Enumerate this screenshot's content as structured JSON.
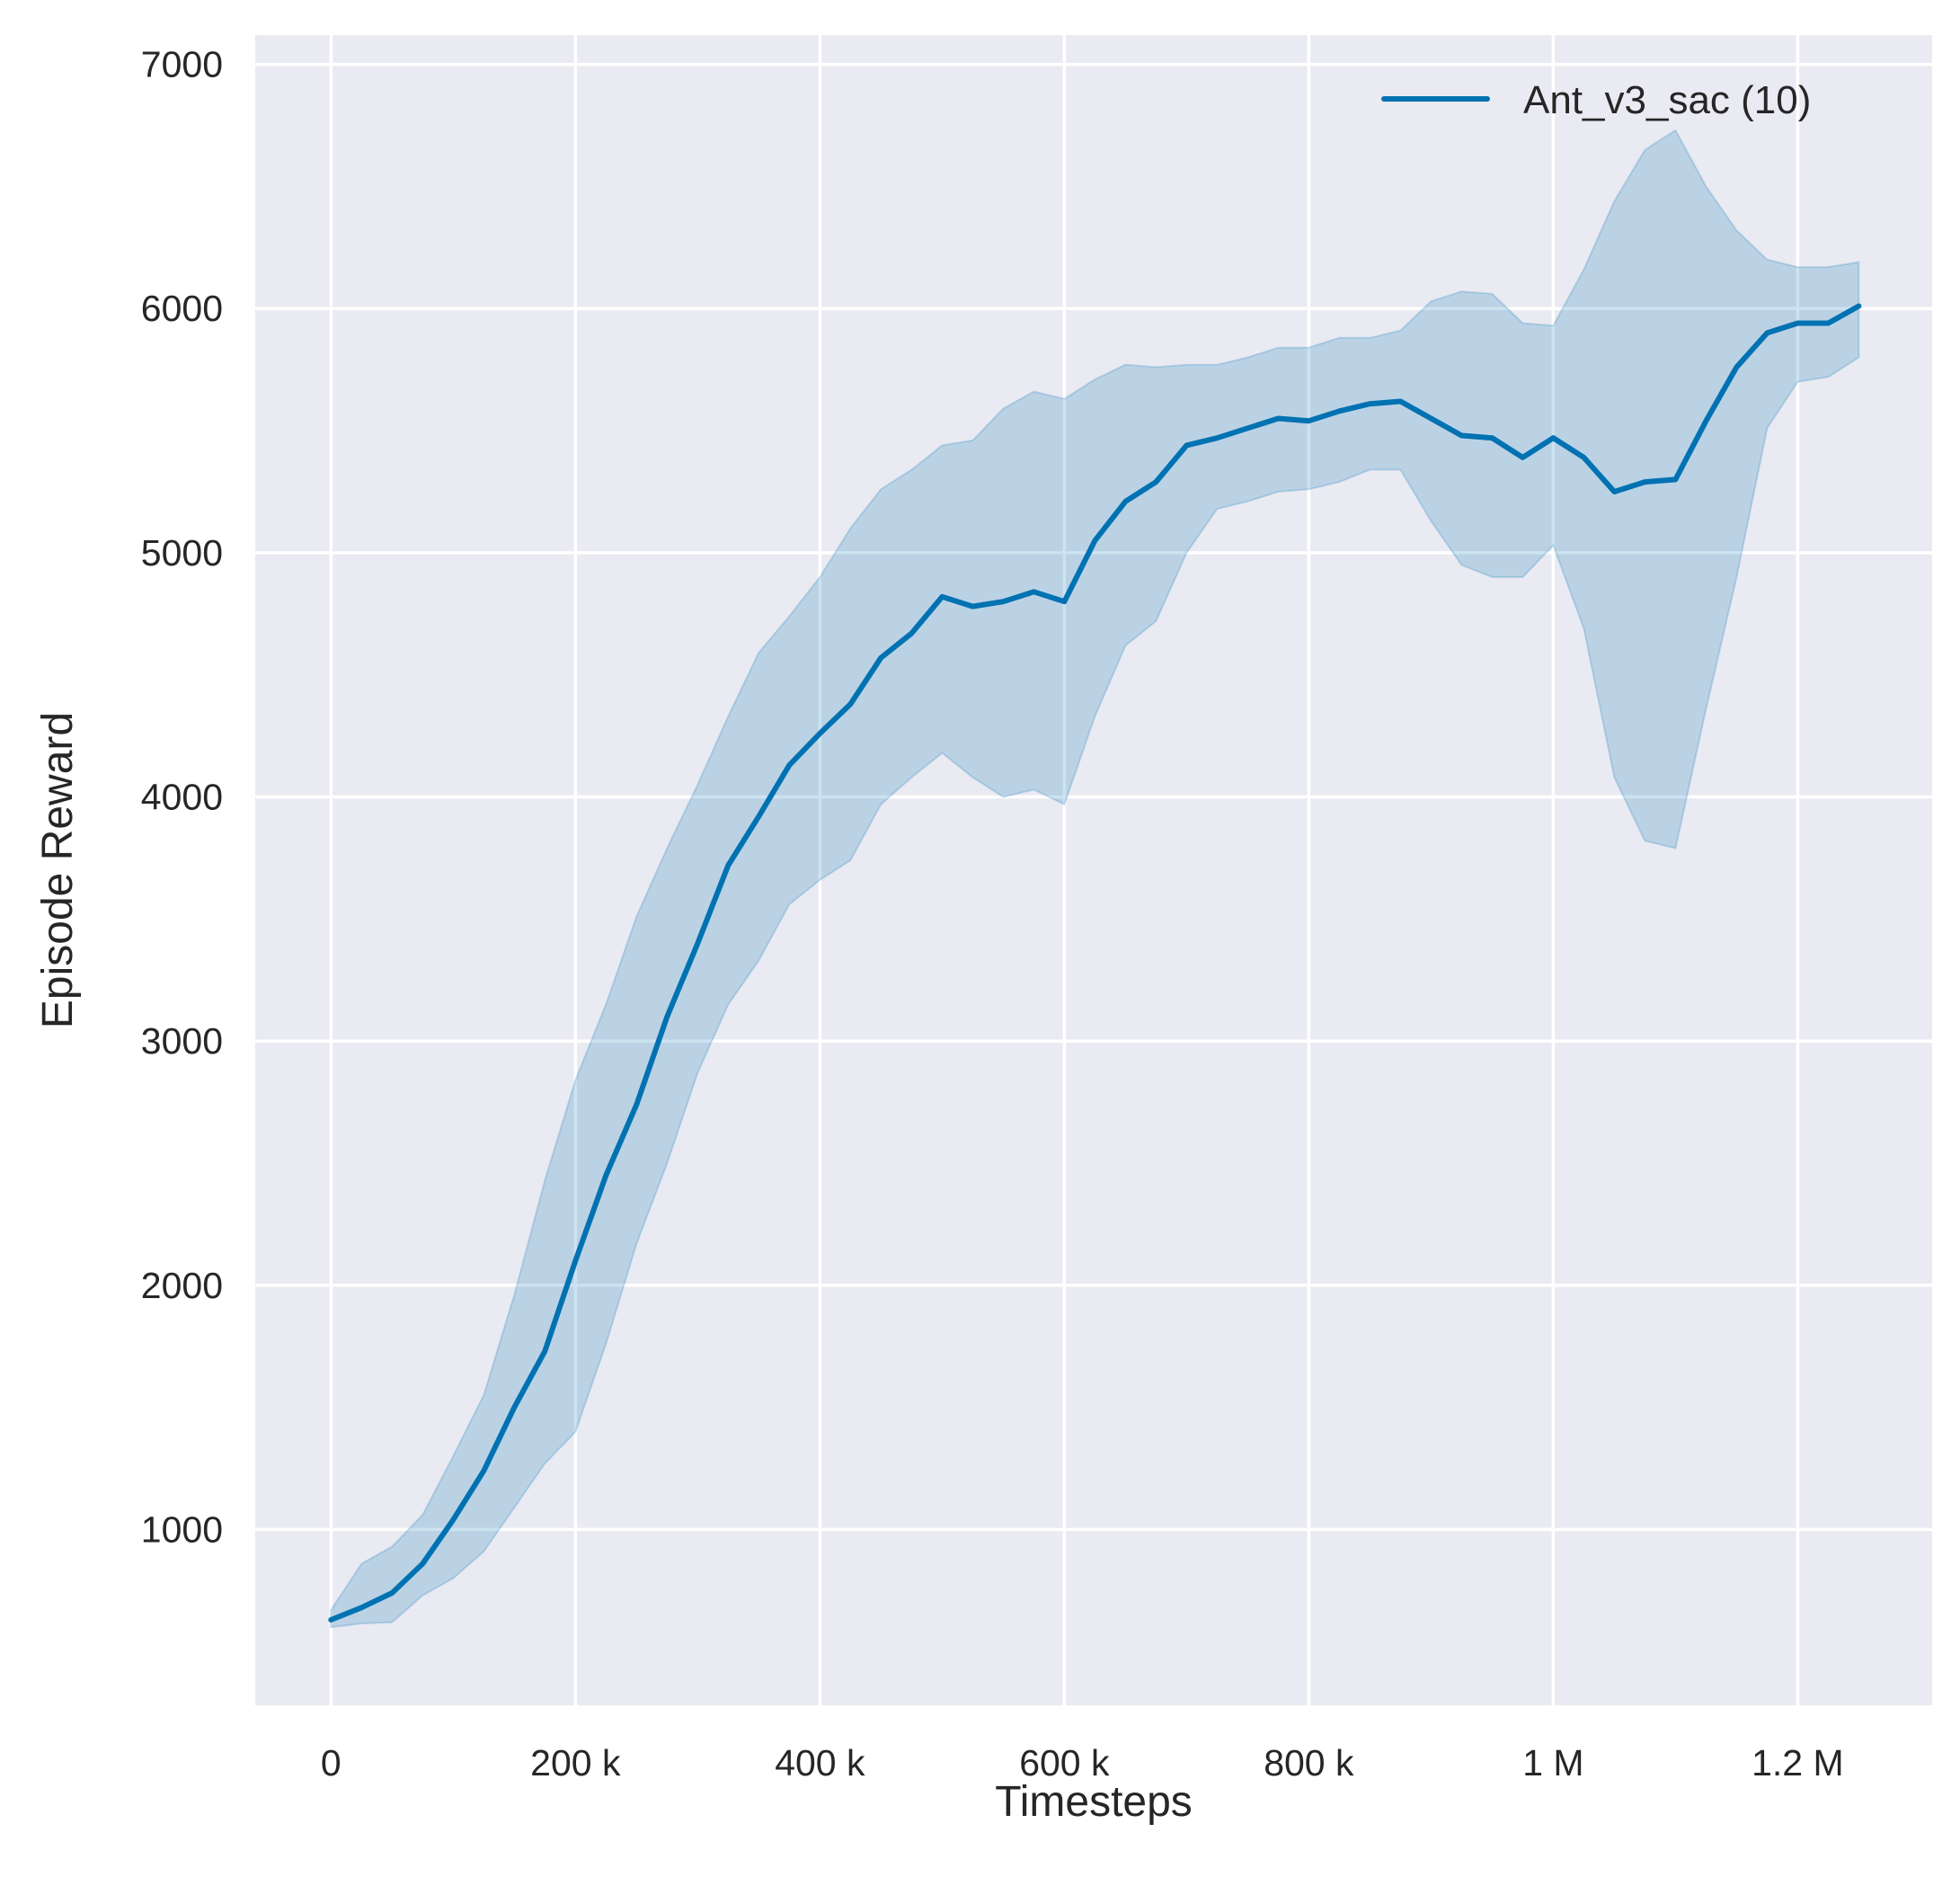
{
  "chart_data": {
    "type": "line",
    "title": "",
    "xlabel": "Timesteps",
    "ylabel": "Episode Reward",
    "xlim": [
      -62000,
      1310000
    ],
    "ylim": [
      280,
      7120
    ],
    "grid": true,
    "legend_position": "top-right",
    "background_color": "#EAEAF2",
    "xticks": [
      0,
      200000,
      400000,
      600000,
      800000,
      1000000,
      1200000
    ],
    "xtick_labels": [
      "0",
      "200 k",
      "400 k",
      "600 k",
      "800 k",
      "1 M",
      "1.2 M"
    ],
    "yticks": [
      1000,
      2000,
      3000,
      4000,
      5000,
      6000,
      7000
    ],
    "ytick_labels": [
      "1000",
      "2000",
      "3000",
      "4000",
      "5000",
      "6000",
      "7000"
    ],
    "series": [
      {
        "name": "Ant_v3_sac (10)",
        "color": "#0072B2",
        "band_color": "#0072B2",
        "x": [
          0,
          25000,
          50000,
          75000,
          100000,
          125000,
          150000,
          175000,
          200000,
          225000,
          250000,
          275000,
          300000,
          325000,
          350000,
          375000,
          400000,
          425000,
          450000,
          475000,
          500000,
          525000,
          550000,
          575000,
          600000,
          625000,
          650000,
          675000,
          700000,
          725000,
          750000,
          775000,
          800000,
          825000,
          850000,
          875000,
          900000,
          925000,
          950000,
          975000,
          1000000,
          1025000,
          1050000,
          1075000,
          1100000,
          1125000,
          1150000,
          1175000,
          1200000,
          1225000,
          1250000
        ],
        "mean": [
          630,
          680,
          740,
          860,
          1040,
          1240,
          1500,
          1730,
          2100,
          2450,
          2740,
          3100,
          3400,
          3720,
          3920,
          4130,
          4260,
          4380,
          4570,
          4670,
          4820,
          4780,
          4800,
          4840,
          4800,
          5050,
          5210,
          5290,
          5440,
          5470,
          5510,
          5550,
          5540,
          5580,
          5610,
          5620,
          5550,
          5480,
          5470,
          5390,
          5470,
          5390,
          5250,
          5290,
          5300,
          5540,
          5760,
          5900,
          5940,
          5940,
          6010
        ],
        "upper": [
          670,
          860,
          930,
          1060,
          1300,
          1550,
          1960,
          2430,
          2840,
          3150,
          3510,
          3790,
          4050,
          4330,
          4590,
          4740,
          4900,
          5100,
          5260,
          5340,
          5440,
          5460,
          5590,
          5660,
          5630,
          5710,
          5770,
          5760,
          5770,
          5770,
          5800,
          5840,
          5840,
          5880,
          5880,
          5910,
          6030,
          6070,
          6060,
          5940,
          5930,
          6160,
          6440,
          6650,
          6730,
          6500,
          6320,
          6200,
          6170,
          6170,
          6190
        ],
        "lower": [
          600,
          615,
          620,
          730,
          800,
          910,
          1090,
          1270,
          1400,
          1760,
          2170,
          2500,
          2870,
          3150,
          3330,
          3560,
          3660,
          3740,
          3970,
          4080,
          4180,
          4080,
          4000,
          4030,
          3970,
          4330,
          4620,
          4720,
          5000,
          5180,
          5210,
          5250,
          5260,
          5290,
          5340,
          5340,
          5130,
          4950,
          4900,
          4900,
          5030,
          4690,
          4080,
          3820,
          3790,
          4360,
          4900,
          5510,
          5700,
          5720,
          5800
        ]
      }
    ]
  }
}
